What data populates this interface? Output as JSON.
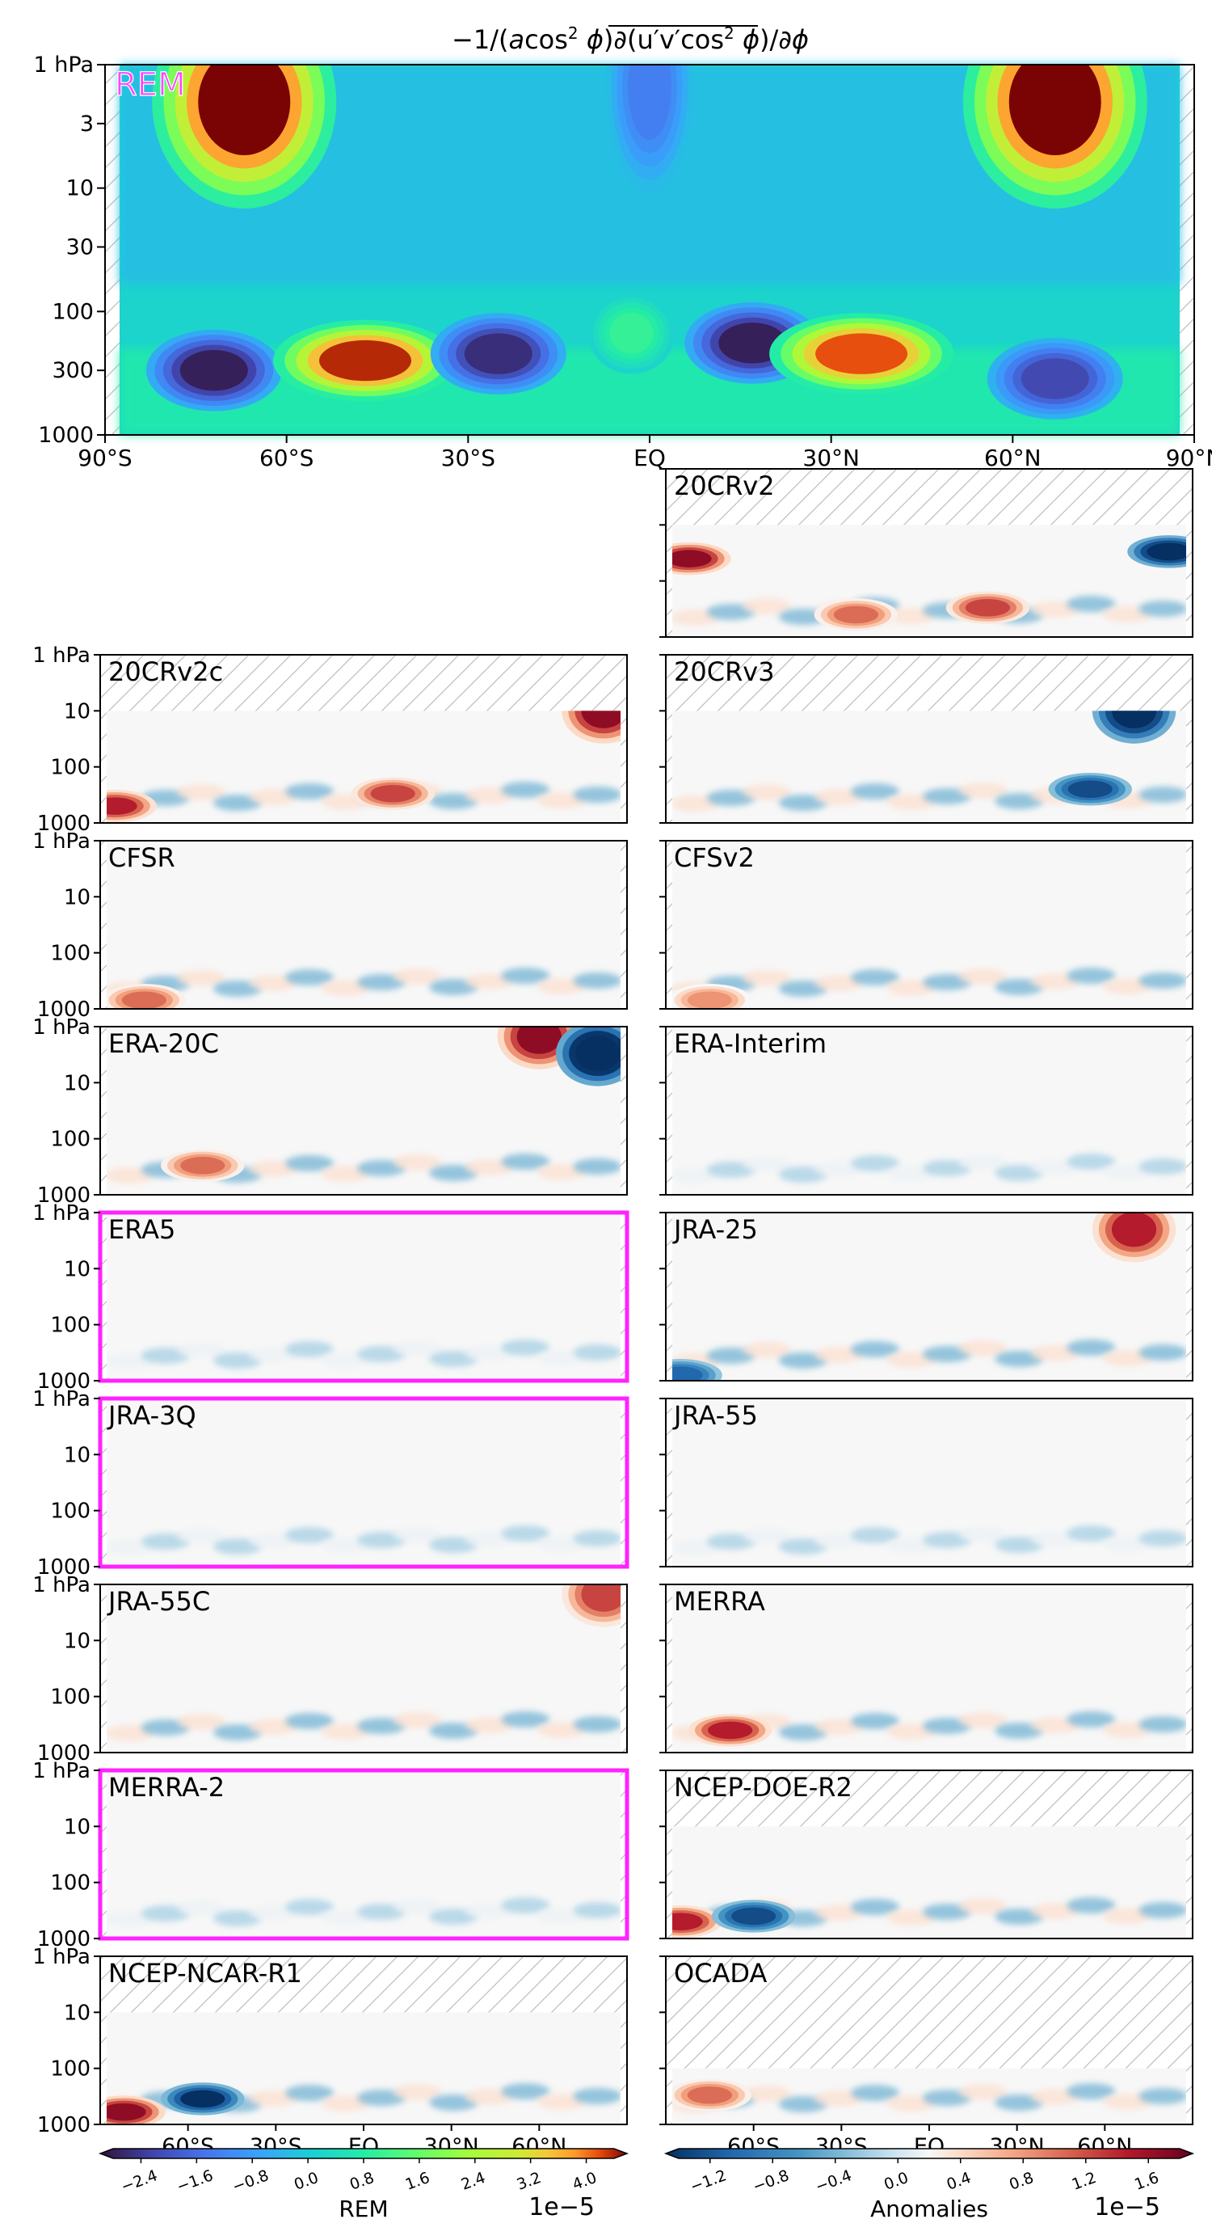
{
  "figure": {
    "title_parts": [
      "−1/(",
      "a",
      "cos",
      "2",
      " ",
      "ϕ",
      ")∂(",
      "u′v′cos",
      "2",
      " ",
      "ϕ",
      ")/∂",
      "ϕ"
    ]
  },
  "colors": {
    "highlight": "#ff22ff",
    "rem_label": "#ff44ff",
    "hatch": "#c0c0c0",
    "frame": "#000000"
  },
  "chart_data": [
    {
      "type": "heatmap",
      "panel": "REM",
      "label": "REM",
      "colormap": "jet",
      "x_ticks": [
        "90°S",
        "60°S",
        "30°S",
        "EQ",
        "30°N",
        "60°N",
        "90°N"
      ],
      "x_tick_values": [
        -90,
        -60,
        -30,
        0,
        30,
        60,
        90
      ],
      "y_ticks": [
        "1 hPa",
        "3",
        "10",
        "30",
        "100",
        "300",
        "1000"
      ],
      "y_tick_values": [
        1,
        3,
        10,
        30,
        100,
        300,
        1000
      ],
      "y_scale": "log",
      "xlim": [
        -90,
        90
      ],
      "ylim": [
        1000,
        1
      ],
      "units_multiplier": "1e−5",
      "features": [
        {
          "lat": -67,
          "p": 2,
          "value": 4.5
        },
        {
          "lat": 67,
          "p": 2,
          "value": 4.5
        },
        {
          "lat": -72,
          "p": 300,
          "value": -2.6
        },
        {
          "lat": -47,
          "p": 250,
          "value": 4.2
        },
        {
          "lat": -25,
          "p": 220,
          "value": -2.4
        },
        {
          "lat": -3,
          "p": 150,
          "value": 1.0
        },
        {
          "lat": 17,
          "p": 180,
          "value": -2.6
        },
        {
          "lat": 35,
          "p": 220,
          "value": 4.0
        },
        {
          "lat": 67,
          "p": 350,
          "value": -2.0
        },
        {
          "lat": 0,
          "p": 1.5,
          "value": -1.2
        }
      ]
    },
    {
      "type": "heatmap",
      "colormap": "RdBu_r",
      "x_ticks": [
        "60°S",
        "30°S",
        "EQ",
        "30°N",
        "60°N"
      ],
      "x_tick_values": [
        -60,
        -30,
        0,
        30,
        60
      ],
      "y_ticks": [
        "1 hPa",
        "10",
        "100",
        "1000"
      ],
      "y_tick_values": [
        1,
        10,
        100,
        1000
      ],
      "y_scale": "log",
      "units_multiplier": "1e−5",
      "panels": [
        {
          "name": "20CRv2",
          "top_hpa": 10,
          "highlight": false,
          "features": [
            {
              "lat": -82,
              "p": 40,
              "value": 1.6
            },
            {
              "lat": 82,
              "p": 30,
              "value": -1.6
            },
            {
              "lat": -25,
              "p": 400,
              "value": 1.0
            },
            {
              "lat": 20,
              "p": 300,
              "value": 1.2
            }
          ]
        },
        {
          "name": "20CRv2c",
          "top_hpa": 10,
          "highlight": false,
          "features": [
            {
              "lat": 82,
              "p": 10,
              "value": 1.6
            },
            {
              "lat": -85,
              "p": 500,
              "value": 1.4
            },
            {
              "lat": 10,
              "p": 300,
              "value": 1.2
            }
          ]
        },
        {
          "name": "20CRv3",
          "top_hpa": 10,
          "highlight": false,
          "features": [
            {
              "lat": 70,
              "p": 10,
              "value": -1.6
            },
            {
              "lat": 55,
              "p": 250,
              "value": -1.2
            }
          ]
        },
        {
          "name": "CFSR",
          "top_hpa": 1,
          "highlight": false,
          "features": [
            {
              "lat": -75,
              "p": 700,
              "value": 1.0
            }
          ]
        },
        {
          "name": "CFSv2",
          "top_hpa": 1,
          "highlight": false,
          "features": [
            {
              "lat": -75,
              "p": 700,
              "value": 0.8
            }
          ]
        },
        {
          "name": "ERA-20C",
          "top_hpa": 1,
          "highlight": false,
          "features": [
            {
              "lat": 60,
              "p": 1.5,
              "value": 1.6
            },
            {
              "lat": 80,
              "p": 3,
              "value": -1.8
            },
            {
              "lat": -55,
              "p": 300,
              "value": 1.0
            }
          ]
        },
        {
          "name": "ERA-Interim",
          "top_hpa": 1,
          "highlight": false,
          "features": []
        },
        {
          "name": "ERA5",
          "top_hpa": 1,
          "highlight": true,
          "features": []
        },
        {
          "name": "JRA-25",
          "top_hpa": 1,
          "highlight": false,
          "features": [
            {
              "lat": 70,
              "p": 2,
              "value": 1.4
            },
            {
              "lat": -85,
              "p": 800,
              "value": -1.0
            }
          ]
        },
        {
          "name": "JRA-3Q",
          "top_hpa": 1,
          "highlight": true,
          "features": []
        },
        {
          "name": "JRA-55",
          "top_hpa": 1,
          "highlight": false,
          "features": []
        },
        {
          "name": "JRA-55C",
          "top_hpa": 1,
          "highlight": false,
          "features": [
            {
              "lat": 82,
              "p": 1.5,
              "value": 1.2
            }
          ]
        },
        {
          "name": "MERRA",
          "top_hpa": 1,
          "highlight": false,
          "features": [
            {
              "lat": -68,
              "p": 400,
              "value": 1.4
            }
          ]
        },
        {
          "name": "MERRA-2",
          "top_hpa": 1,
          "highlight": true,
          "features": []
        },
        {
          "name": "NCEP-DOE-R2",
          "top_hpa": 10,
          "highlight": false,
          "features": [
            {
              "lat": -85,
              "p": 500,
              "value": 1.4
            },
            {
              "lat": -60,
              "p": 400,
              "value": -1.2
            }
          ]
        },
        {
          "name": "NCEP-NCAR-R1",
          "top_hpa": 10,
          "highlight": false,
          "features": [
            {
              "lat": -82,
              "p": 600,
              "value": 1.6
            },
            {
              "lat": -55,
              "p": 350,
              "value": -1.4
            }
          ]
        },
        {
          "name": "OCADA",
          "top_hpa": 100,
          "highlight": false,
          "features": [
            {
              "lat": -75,
              "p": 300,
              "value": 1.0
            }
          ]
        }
      ]
    }
  ],
  "colorbars": [
    {
      "label": "REM",
      "multiplier": "1e−5",
      "ticks": [
        "−2.4",
        "−1.6",
        "−0.8",
        "0.0",
        "0.8",
        "1.6",
        "2.4",
        "3.2",
        "4.0"
      ],
      "range": [
        -2.8,
        4.4
      ],
      "colormap": "jet"
    },
    {
      "label": "Anomalies",
      "multiplier": "1e−5",
      "ticks": [
        "−1.2",
        "−0.8",
        "−0.4",
        "0.0",
        "0.4",
        "0.8",
        "1.2",
        "1.6"
      ],
      "range": [
        -1.4,
        1.8
      ],
      "colormap": "RdBu_r"
    }
  ]
}
